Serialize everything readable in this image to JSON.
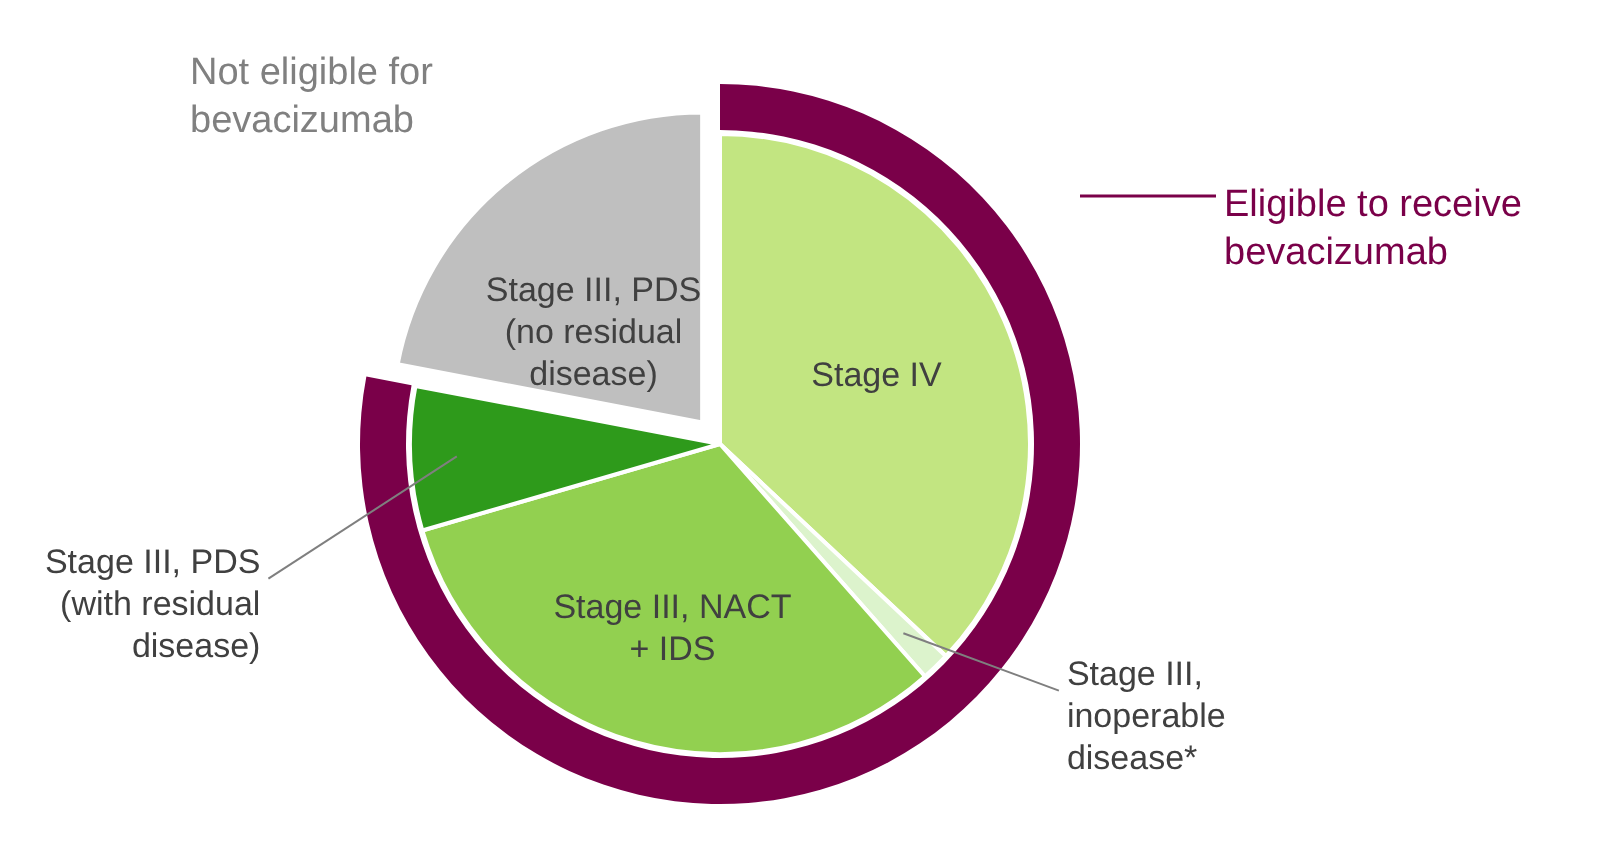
{
  "chart_data": {
    "type": "pie",
    "categories": [
      "Stage IV",
      "Stage III,\ninoperable\ndisease*",
      "Stage III, NACT\n+ IDS",
      "Stage III, PDS\n(with residual\ndisease)",
      "Stage III, PDS\n(no residual\ndisease)"
    ],
    "values": [
      37,
      1.5,
      32,
      7.5,
      22
    ],
    "colors": [
      "#c2e581",
      "#dcf3cc",
      "#92d050",
      "#2e9a1b",
      "#bfbfbf"
    ],
    "annotations": [
      "Not eligible for\nbevacizumab",
      "Eligible to receive\nbevacizumab"
    ],
    "legend": false
  }
}
